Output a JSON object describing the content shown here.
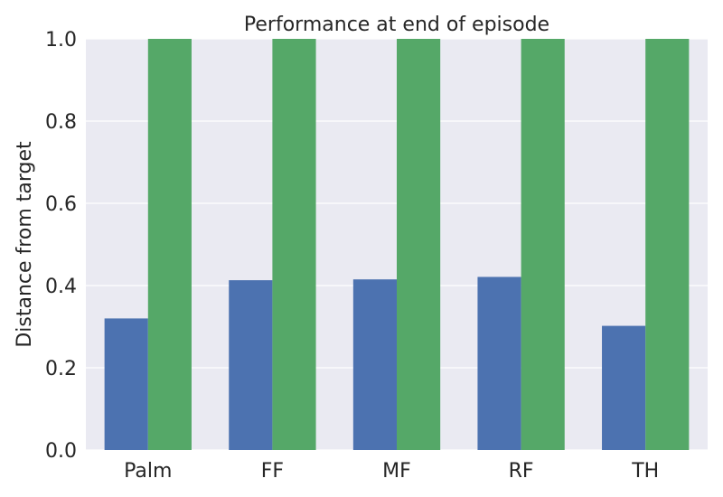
{
  "chart_data": {
    "type": "bar",
    "title": "Performance at end of episode",
    "xlabel": "",
    "ylabel": "Distance from target",
    "categories": [
      "Palm",
      "FF",
      "MF",
      "RF",
      "TH"
    ],
    "series": [
      {
        "values": [
          0.32,
          0.413,
          0.415,
          0.421,
          0.302
        ],
        "color": "#4c72b0"
      },
      {
        "values": [
          1.0,
          1.0,
          1.0,
          1.0,
          1.0
        ],
        "color": "#55a868"
      }
    ],
    "ylim": [
      0,
      1.0
    ],
    "yticks": [
      "0.0",
      "0.2",
      "0.4",
      "0.6",
      "0.8",
      "1.0"
    ],
    "ytick_values": [
      0,
      0.2,
      0.4,
      0.6,
      0.8,
      1.0
    ],
    "grid": true,
    "background": "#eaeaf2",
    "legend": "none"
  }
}
